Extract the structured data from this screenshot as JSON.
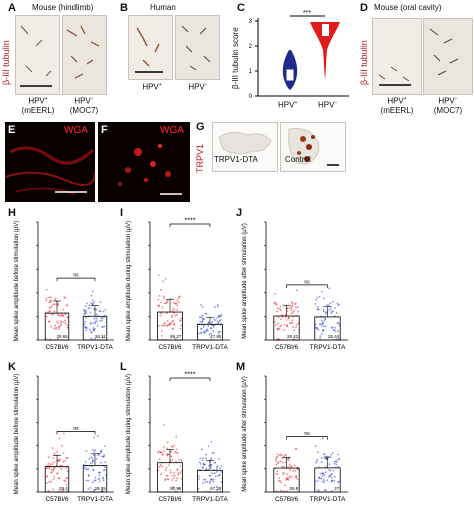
{
  "panels": {
    "A": {
      "letter": "A",
      "title": "Mouse (hindlimb)",
      "ylabel": "β-III tubulin",
      "captions": [
        {
          "line1": "HPV",
          "sup": "+",
          "line2": "(mEERL)"
        },
        {
          "line1": "HPV",
          "sup": "−",
          "line2": "(MOC7)"
        }
      ]
    },
    "B": {
      "letter": "B",
      "title": "Human",
      "captions": [
        {
          "line1": "HPV",
          "sup": "+"
        },
        {
          "line1": "HPV",
          "sup": "−"
        }
      ]
    },
    "C": {
      "letter": "C",
      "ylabel": "β-III tubulin score",
      "sig": "***",
      "ticks": [
        "0",
        "1",
        "2",
        "3"
      ],
      "groups": [
        {
          "line1": "HPV",
          "sup": "+"
        },
        {
          "line1": "HPV",
          "sup": "−"
        }
      ]
    },
    "D": {
      "letter": "D",
      "title": "Mouse (oral cavity)",
      "ylabel": "β-III tubulin",
      "captions": [
        {
          "line1": "HPV",
          "sup": "+",
          "line2": "(mEERL)"
        },
        {
          "line1": "HPV",
          "sup": "−",
          "line2": "(MOC7)"
        }
      ]
    },
    "E": {
      "letter": "E",
      "stain": "WGA"
    },
    "F": {
      "letter": "F",
      "stain": "WGA"
    },
    "G": {
      "letter": "G",
      "ylabel": "TRPV1",
      "captions": [
        "TRPV1-DTA",
        "Control"
      ]
    }
  },
  "chart_data": [
    {
      "panel": "H",
      "type": "bar",
      "ylabel": "Mean spike amplitude before stimulation (μV)",
      "categories": [
        "C57Bl/6",
        "TRPV1-DTA"
      ],
      "values": [
        29.65,
        26.11
      ],
      "sig": "ns",
      "colors": [
        "#e8202a",
        "#2b3fd9"
      ],
      "yticks": [
        "",
        "",
        "",
        "",
        "",
        ""
      ]
    },
    {
      "panel": "I",
      "type": "bar",
      "ylabel": "Mean spike amplitude during stimulation (μV)",
      "categories": [
        "C57Bl/6",
        "TRPV1-DTA"
      ],
      "values": [
        85.27,
        47.85
      ],
      "sig": "****",
      "colors": [
        "#e8202a",
        "#2b3fd9"
      ],
      "yticks": [
        "",
        "",
        "",
        "",
        "",
        ""
      ]
    },
    {
      "panel": "J",
      "type": "bar",
      "ylabel": "Mean spike amplitude after stimulation (μV)",
      "categories": [
        "C57Bl/6",
        "TRPV1-DTA"
      ],
      "values": [
        26.42,
        25.44
      ],
      "sig": "ns",
      "colors": [
        "#e8202a",
        "#2b3fd9"
      ],
      "yticks": [
        "",
        "",
        "",
        "",
        "",
        ""
      ]
    },
    {
      "panel": "K",
      "type": "bar",
      "ylabel": "Mean spike amplitude before stimulation (μV)",
      "categories": [
        "C57Bl/6",
        "TRPV1-DTA"
      ],
      "values": [
        28.4,
        29.55
      ],
      "sig": "ns",
      "colors": [
        "#e8202a",
        "#2b3fd9"
      ],
      "yticks": [
        "",
        "",
        "",
        "",
        "",
        ""
      ]
    },
    {
      "panel": "L",
      "type": "bar",
      "ylabel": "Mean spike amplitude during stimulation (μV)",
      "categories": [
        "C57Bl/6",
        "TRPV1-DTA"
      ],
      "values": [
        90.96,
        67.28
      ],
      "sig": "****",
      "colors": [
        "#e8202a",
        "#2b3fd9"
      ],
      "yticks": [
        "",
        "",
        "",
        "",
        "",
        ""
      ]
    },
    {
      "panel": "M",
      "type": "bar",
      "ylabel": "Mean spike amplitude after stimulation (μV)",
      "categories": [
        "C57Bl/6",
        "TRPV1-DTA"
      ],
      "values": [
        26.8,
        27.0
      ],
      "sig": "ns",
      "colors": [
        "#e8202a",
        "#2b3fd9"
      ],
      "yticks": [
        "",
        "",
        "",
        "",
        "",
        ""
      ]
    }
  ]
}
